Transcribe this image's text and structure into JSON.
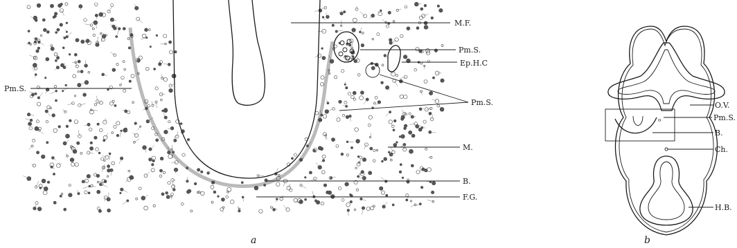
{
  "panel_a": {
    "caption": "a",
    "labels": {
      "mf": "M.F.",
      "pms_top": "Pm.S.",
      "ephc": "Ep.H.C",
      "pms_right": "Pm.S.",
      "m": "M.",
      "b": "B.",
      "fg": "F.G.",
      "pms_left": "Pm.S."
    }
  },
  "panel_b": {
    "caption": "b",
    "labels": {
      "ov": "O.V.",
      "pms": "Pm.S.",
      "b": "B.",
      "ch": "Ch.",
      "hb": "H.B."
    }
  }
}
